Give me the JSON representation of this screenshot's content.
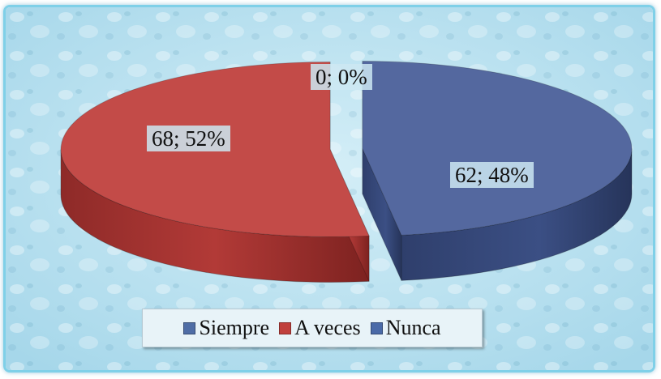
{
  "chart_data": {
    "type": "pie",
    "categories": [
      "Siempre",
      "A veces",
      "Nunca"
    ],
    "values": [
      62,
      68,
      0
    ],
    "labels": [
      "62; 48%",
      "68; 52%",
      "0; 0%"
    ],
    "colors": [
      "#4a5f99",
      "#c0403d",
      "#4a6aa8"
    ],
    "legend_position": "bottom",
    "style": "3d-exploded"
  },
  "legend": {
    "items": [
      {
        "label": "Siempre",
        "color": "#4f6da6"
      },
      {
        "label": "A veces",
        "color": "#c0403d"
      },
      {
        "label": "Nunca",
        "color": "#4a6aa8"
      }
    ]
  }
}
